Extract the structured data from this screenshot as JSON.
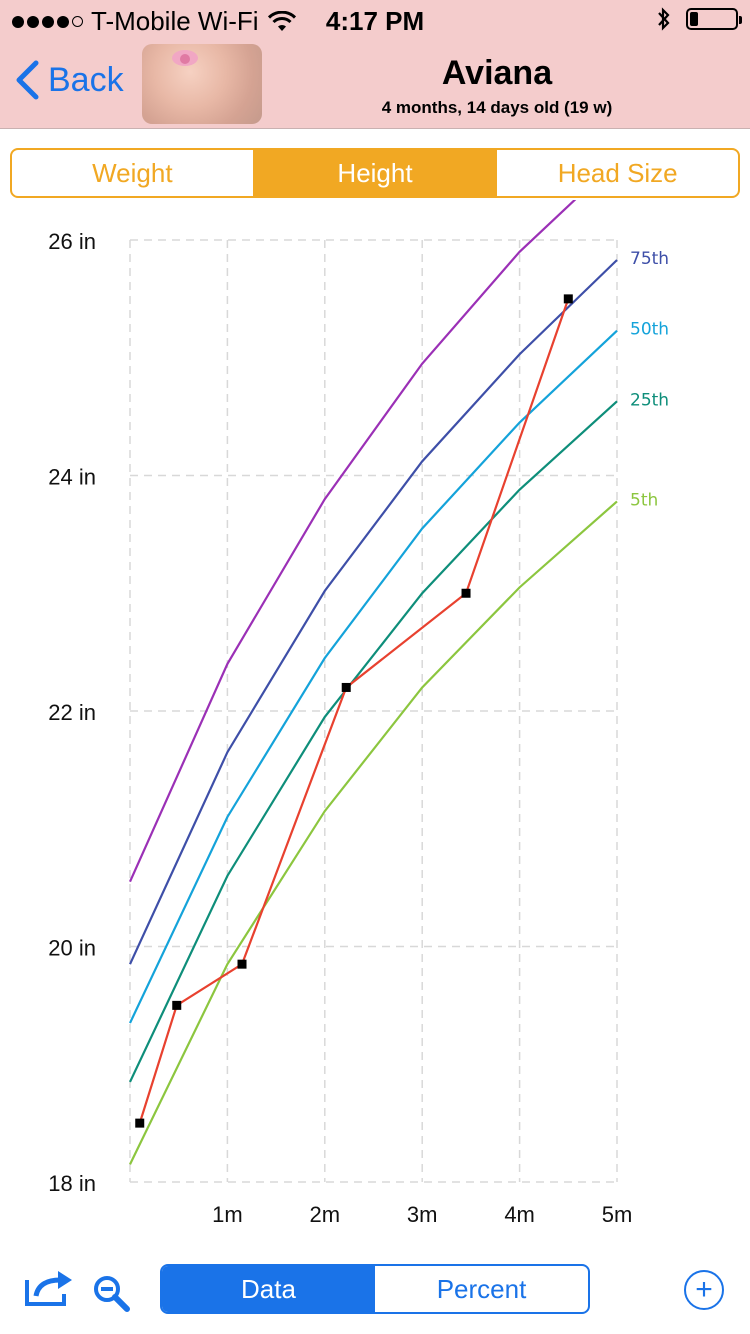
{
  "status_bar": {
    "carrier": "T-Mobile Wi-Fi",
    "time": "4:17 PM",
    "signal_bars_filled": 4,
    "signal_bars_total": 5,
    "battery_level": 0.18
  },
  "nav": {
    "back_label": "Back",
    "title": "Aviana",
    "subtitle": "4 months, 14 days old (19 w)"
  },
  "tabs": [
    {
      "label": "Weight",
      "active": false
    },
    {
      "label": "Height",
      "active": true
    },
    {
      "label": "Head Size",
      "active": false
    }
  ],
  "bottom": {
    "segments": [
      {
        "label": "Data",
        "active": true
      },
      {
        "label": "Percent",
        "active": false
      }
    ],
    "icons": [
      "share-icon",
      "zoom-out-icon",
      "add-icon"
    ]
  },
  "colors": {
    "accent_orange": "#f1a823",
    "accent_blue": "#1a73e8",
    "nav_background": "#f4cccc"
  },
  "chart_data": {
    "type": "line",
    "xlim": [
      0,
      5
    ],
    "ylim": [
      18,
      26
    ],
    "x_ticks": [
      1,
      2,
      3,
      4,
      5
    ],
    "x_tick_labels": [
      "1m",
      "2m",
      "3m",
      "4m",
      "5m"
    ],
    "y_ticks": [
      18,
      20,
      22,
      24,
      26
    ],
    "y_tick_labels": [
      "18 in",
      "20 in",
      "22 in",
      "24 in",
      "26 in"
    ],
    "grid": true,
    "series": [
      {
        "name": "",
        "color": "#9b30b6",
        "x": [
          0,
          1,
          2,
          3,
          4,
          4.9
        ],
        "y": [
          20.55,
          22.4,
          23.8,
          24.95,
          25.9,
          26.6
        ]
      },
      {
        "name": "75th",
        "color": "#3e4fa8",
        "x": [
          0,
          1,
          2,
          3,
          4,
          5
        ],
        "y": [
          19.85,
          21.65,
          23.02,
          24.12,
          25.03,
          25.83
        ]
      },
      {
        "name": "50th",
        "color": "#14a3da",
        "x": [
          0,
          1,
          2,
          3,
          4,
          5
        ],
        "y": [
          19.35,
          21.1,
          22.45,
          23.55,
          24.45,
          25.23
        ]
      },
      {
        "name": "25th",
        "color": "#0e8e7a",
        "x": [
          0,
          1,
          2,
          3,
          4,
          5
        ],
        "y": [
          18.85,
          20.6,
          21.95,
          23.0,
          23.88,
          24.63
        ]
      },
      {
        "name": "5th",
        "color": "#8cc63f",
        "x": [
          0,
          1,
          2,
          3,
          4,
          5
        ],
        "y": [
          18.15,
          19.85,
          21.15,
          22.2,
          23.05,
          23.78
        ]
      },
      {
        "name": "",
        "color": "#e8412f",
        "markers": true,
        "x": [
          0.1,
          0.48,
          1.15,
          2.22,
          3.45,
          4.5
        ],
        "y": [
          18.5,
          19.5,
          19.85,
          22.2,
          23.0,
          25.5
        ]
      }
    ]
  }
}
